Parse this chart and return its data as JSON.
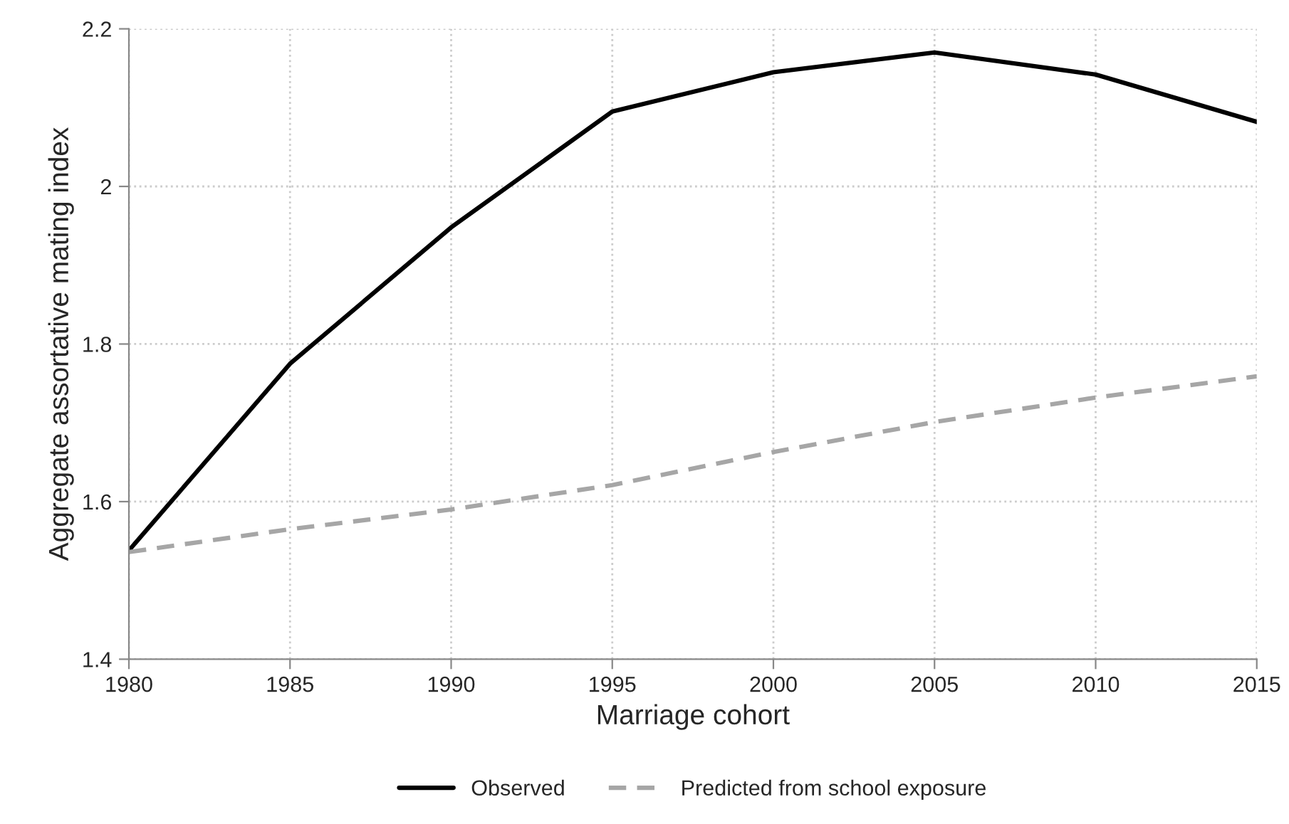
{
  "chart_data": {
    "type": "line",
    "xlabel": "Marriage cohort",
    "ylabel": "Aggregate assortative mating index",
    "x": [
      1980,
      1985,
      1990,
      1995,
      2000,
      2005,
      2010,
      2015
    ],
    "series": [
      {
        "name": "Observed",
        "color": "#000000",
        "line_style": "solid",
        "values": [
          1.538,
          1.775,
          1.948,
          2.095,
          2.145,
          2.17,
          2.142,
          2.082
        ]
      },
      {
        "name": "Predicted from school exposure",
        "color": "#a6a6a6",
        "line_style": "dashed",
        "values": [
          1.536,
          1.565,
          1.59,
          1.621,
          1.663,
          1.701,
          1.732,
          1.759
        ]
      }
    ],
    "xlim": [
      1980,
      2015
    ],
    "xticks": [
      1980,
      1985,
      1990,
      1995,
      2000,
      2005,
      2010,
      2015
    ],
    "ylim": [
      1.4,
      2.2
    ],
    "yticks": [
      1.4,
      1.6,
      1.8,
      2,
      2.2
    ],
    "grid": true,
    "legend": "bottom",
    "marker": "none"
  }
}
